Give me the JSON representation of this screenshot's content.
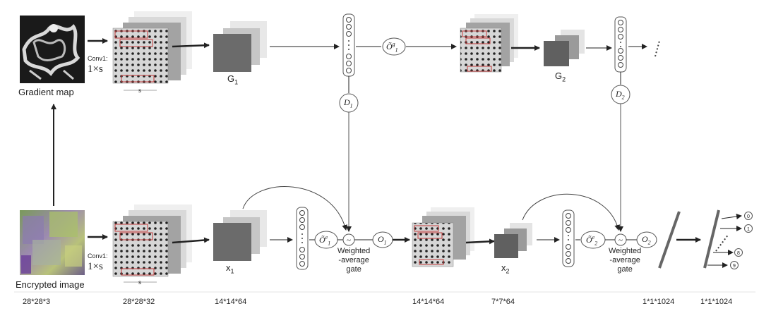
{
  "inputs": {
    "gradient_label": "Gradient map",
    "encrypted_label": "Encrypted image"
  },
  "conv": {
    "top_label": "Conv1:",
    "top_kernel": "1×s",
    "bottom_label": "Conv1:",
    "bottom_kernel": "1×s",
    "s_top": "s",
    "s_bottom": "s",
    "s_mid": "s"
  },
  "features": {
    "g1": "G",
    "g1_sub": "1",
    "g2": "G",
    "g2_sub": "2",
    "x1": "x",
    "x1_sub": "1",
    "x2": "x",
    "x2_sub": "2"
  },
  "nodes": {
    "og1": "Õ",
    "og1_sup": "g",
    "og1_sub": "1",
    "oe1": "Õ",
    "oe1_sup": "e",
    "oe1_sub": "1",
    "oe2": "Õ",
    "oe2_sup": "e",
    "oe2_sub": "2",
    "d1": "D",
    "d1_sub": "1",
    "d2": "D",
    "d2_sub": "2",
    "o1": "O",
    "o1_sub": "1",
    "o2": "O",
    "o2_sub": "2",
    "gate_symbol": "~"
  },
  "gates": {
    "gate1_line1": "Weighted",
    "gate1_line2": "-average",
    "gate1_line3": "gate",
    "gate2_line1": "Weighted",
    "gate2_line2": "-average",
    "gate2_line3": "gate"
  },
  "outputs": [
    "0",
    "1",
    "8",
    "9"
  ],
  "dims": [
    "28*28*3",
    "28*28*32",
    "14*14*64",
    "14*14*64",
    "7*7*64",
    "1*1*1024",
    "1*1*1024"
  ],
  "colors": {
    "stroke": "#333333",
    "grid_border": "#c43c3c",
    "stack_dark": "#6b6b6b"
  }
}
